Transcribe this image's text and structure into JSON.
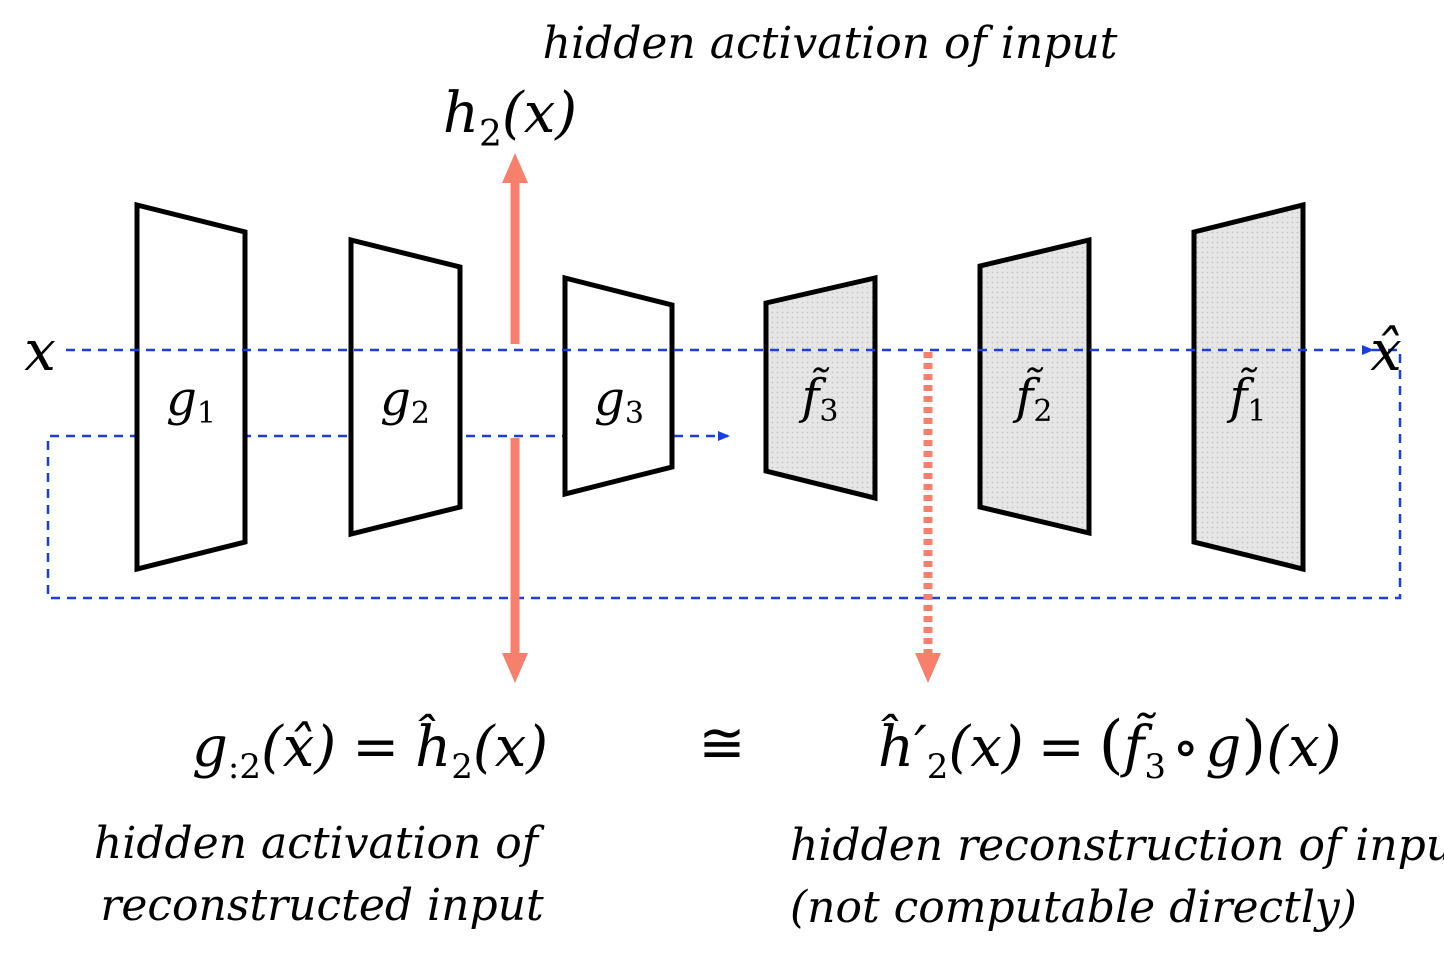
{
  "captions": {
    "top": "hidden activation of input",
    "bottom_left_line1": "hidden activation of",
    "bottom_left_line2": "reconstructed input",
    "bottom_right_line1": "hidden reconstruction of input",
    "bottom_right_line2": "(not computable directly)"
  },
  "labels": {
    "input": "x",
    "output": "x̂",
    "h2": {
      "base": "h",
      "sub": "2",
      "arg": "(x)"
    },
    "encoders": [
      {
        "base": "g",
        "sub": "1"
      },
      {
        "base": "g",
        "sub": "2"
      },
      {
        "base": "g",
        "sub": "3"
      }
    ],
    "decoders": [
      {
        "base": "f̃",
        "sub": "3"
      },
      {
        "base": "f̃",
        "sub": "2"
      },
      {
        "base": "f̃",
        "sub": "1"
      }
    ]
  },
  "equations": {
    "left": {
      "g": "g",
      "g_sub": ":2",
      "g_arg": "(x̂)",
      "eq": "=",
      "h": "ĥ",
      "h_sub": "2",
      "h_arg": "(x)"
    },
    "approx": "≅",
    "right": {
      "h": "ĥ′",
      "h_sub": "2",
      "h_arg": "(x)",
      "eq": "=",
      "lparen": "(",
      "f": "f̃",
      "f_sub": "3",
      "compose": "∘",
      "g": "g",
      "rparen": ")",
      "arg": "(x)"
    }
  },
  "colors": {
    "flow": "#1a3ee0",
    "activation": "#f6806c",
    "encoder_fill": "#ffffff",
    "decoder_fill": "#e3e3e3",
    "stroke": "#000000"
  }
}
